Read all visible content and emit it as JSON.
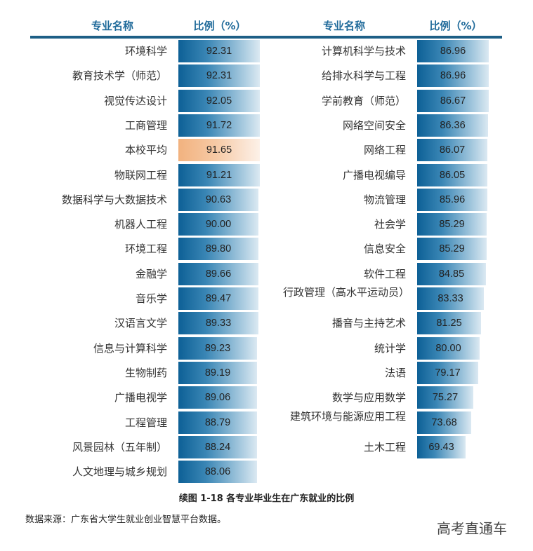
{
  "headers": {
    "left": {
      "name": "专业名称",
      "ratio": "比例（%）"
    },
    "right": {
      "name": "专业名称",
      "ratio": "比例（%）"
    }
  },
  "left_rows": [
    {
      "label": "环境科学",
      "value": "92.31"
    },
    {
      "label": "教育技术学（师范）",
      "value": "92.31"
    },
    {
      "label": "视觉传达设计",
      "value": "92.05"
    },
    {
      "label": "工商管理",
      "value": "91.72"
    },
    {
      "label": "本校平均",
      "value": "91.65",
      "highlight": true
    },
    {
      "label": "物联网工程",
      "value": "91.21"
    },
    {
      "label": "数据科学与大数据技术",
      "value": "90.63"
    },
    {
      "label": "机器人工程",
      "value": "90.00"
    },
    {
      "label": "环境工程",
      "value": "89.80"
    },
    {
      "label": "金融学",
      "value": "89.66"
    },
    {
      "label": "音乐学",
      "value": "89.47"
    },
    {
      "label": "汉语言文学",
      "value": "89.33"
    },
    {
      "label": "信息与计算科学",
      "value": "89.23"
    },
    {
      "label": "生物制药",
      "value": "89.19"
    },
    {
      "label": "广播电视学",
      "value": "89.06"
    },
    {
      "label": "工程管理",
      "value": "88.79"
    },
    {
      "label": "风景园林（五年制）",
      "value": "88.24"
    },
    {
      "label": "人文地理与城乡规划",
      "value": "88.06"
    }
  ],
  "right_rows": [
    {
      "label": "计算机科学与技术",
      "value": "86.96"
    },
    {
      "label": "给排水科学与工程",
      "value": "86.96"
    },
    {
      "label": "学前教育（师范）",
      "value": "86.67"
    },
    {
      "label": "网络空间安全",
      "value": "86.36"
    },
    {
      "label": "网络工程",
      "value": "86.07"
    },
    {
      "label": "广播电视编导",
      "value": "86.05"
    },
    {
      "label": "物流管理",
      "value": "85.96"
    },
    {
      "label": "社会学",
      "value": "85.29"
    },
    {
      "label": "信息安全",
      "value": "85.29"
    },
    {
      "label": "软件工程",
      "value": "84.85"
    },
    {
      "label": "行政管理（高水平运动员）",
      "value": "83.33"
    },
    {
      "label": "播音与主持艺术",
      "value": "81.25"
    },
    {
      "label": "统计学",
      "value": "80.00"
    },
    {
      "label": "法语",
      "value": "79.17"
    },
    {
      "label": "数学与应用数学",
      "value": "75.27"
    },
    {
      "label": "建筑环境与能源应用工程",
      "value": "73.68"
    },
    {
      "label": "土木工程",
      "value": "69.43"
    }
  ],
  "caption": "续图 1-18  各专业毕业生在广东就业的比例",
  "source": "数据来源：广东省大学生就业创业智慧平台数据。",
  "watermark": "高考直通车",
  "colors": {
    "bar_start": "#0d6096",
    "bar_end": "#dbe9f2",
    "avg_start": "#f2b27f",
    "header_text": "#1f6a9a",
    "rule": "#1d5f86"
  },
  "chart_data": {
    "type": "bar",
    "orientation": "horizontal",
    "title": "续图 1-18 各专业毕业生在广东就业的比例",
    "xlabel": "比例（%）",
    "ylabel": "专业名称",
    "categories": [
      "环境科学",
      "教育技术学（师范）",
      "视觉传达设计",
      "工商管理",
      "本校平均",
      "物联网工程",
      "数据科学与大数据技术",
      "机器人工程",
      "环境工程",
      "金融学",
      "音乐学",
      "汉语言文学",
      "信息与计算科学",
      "生物制药",
      "广播电视学",
      "工程管理",
      "风景园林（五年制）",
      "人文地理与城乡规划",
      "计算机科学与技术",
      "给排水科学与工程",
      "学前教育（师范）",
      "网络空间安全",
      "网络工程",
      "广播电视编导",
      "物流管理",
      "社会学",
      "信息安全",
      "软件工程",
      "行政管理（高水平运动员）",
      "播音与主持艺术",
      "统计学",
      "法语",
      "数学与应用数学",
      "建筑环境与能源应用工程",
      "土木工程"
    ],
    "values": [
      92.31,
      92.31,
      92.05,
      91.72,
      91.65,
      91.21,
      90.63,
      90.0,
      89.8,
      89.66,
      89.47,
      89.33,
      89.23,
      89.19,
      89.06,
      88.79,
      88.24,
      88.06,
      86.96,
      86.96,
      86.67,
      86.36,
      86.07,
      86.05,
      85.96,
      85.29,
      85.29,
      84.85,
      83.33,
      81.25,
      80.0,
      79.17,
      75.27,
      73.68,
      69.43
    ],
    "highlight": {
      "category": "本校平均",
      "value": 91.65
    },
    "grid": false,
    "legend": null
  }
}
